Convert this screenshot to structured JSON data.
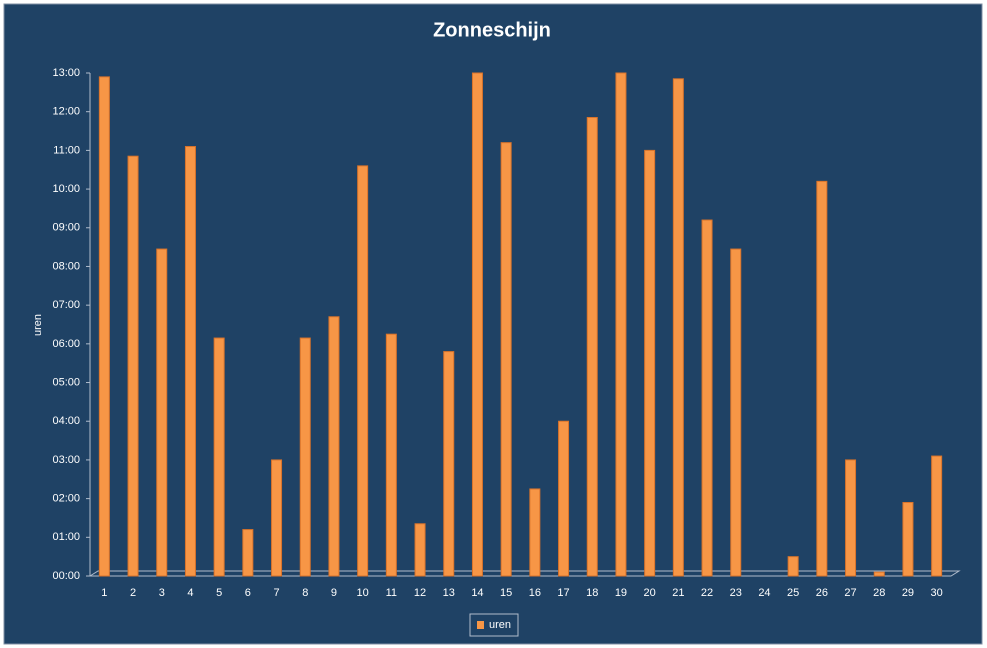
{
  "chart_data": {
    "type": "bar",
    "title": "Zonneschijn",
    "y_label": "uren",
    "categories": [
      "1",
      "2",
      "3",
      "4",
      "5",
      "6",
      "7",
      "8",
      "9",
      "10",
      "11",
      "12",
      "13",
      "14",
      "15",
      "16",
      "17",
      "18",
      "19",
      "20",
      "21",
      "22",
      "23",
      "24",
      "25",
      "26",
      "27",
      "28",
      "29",
      "30"
    ],
    "series": [
      {
        "name": "uren",
        "color": "#f79646",
        "values": [
          12.9,
          10.85,
          8.45,
          11.1,
          6.15,
          1.2,
          3.0,
          6.15,
          6.7,
          10.6,
          6.25,
          1.35,
          5.8,
          13.0,
          11.2,
          2.25,
          4.0,
          11.85,
          13.0,
          11.0,
          12.85,
          9.2,
          8.45,
          0,
          0.5,
          10.2,
          3.0,
          0.1,
          1.9,
          3.1
        ]
      }
    ],
    "ylim": [
      0,
      13
    ],
    "yticks": [
      {
        "value": 0,
        "label": "00:00"
      },
      {
        "value": 1,
        "label": "01:00"
      },
      {
        "value": 2,
        "label": "02:00"
      },
      {
        "value": 3,
        "label": "03:00"
      },
      {
        "value": 4,
        "label": "04:00"
      },
      {
        "value": 5,
        "label": "05:00"
      },
      {
        "value": 6,
        "label": "06:00"
      },
      {
        "value": 7,
        "label": "07:00"
      },
      {
        "value": 8,
        "label": "08:00"
      },
      {
        "value": 9,
        "label": "09:00"
      },
      {
        "value": 10,
        "label": "10:00"
      },
      {
        "value": 11,
        "label": "11:00"
      },
      {
        "value": 12,
        "label": "12:00"
      },
      {
        "value": 13,
        "label": "13:00"
      }
    ],
    "legend": "bottom"
  }
}
